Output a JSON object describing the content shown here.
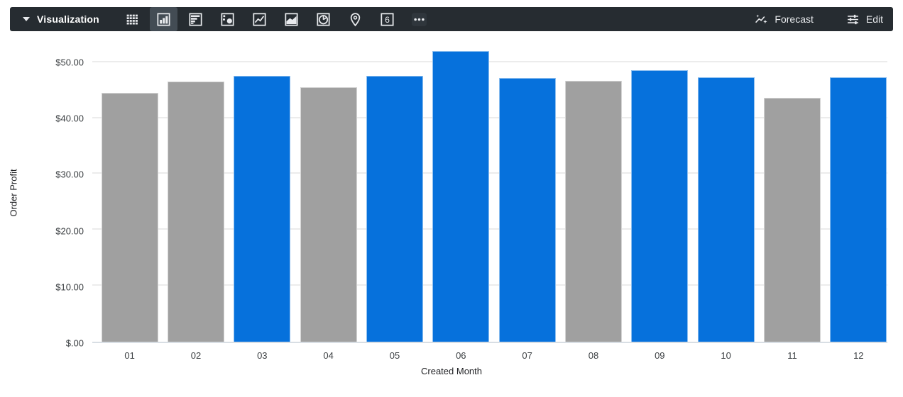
{
  "toolbar": {
    "background": "#262c31",
    "title": "Visualization",
    "chart_types": [
      {
        "name": "table",
        "icon": "table-icon",
        "selected": false
      },
      {
        "name": "column",
        "icon": "column-chart-icon",
        "selected": true
      },
      {
        "name": "bar",
        "icon": "bar-chart-icon",
        "selected": false
      },
      {
        "name": "scatter",
        "icon": "scatter-plot-icon",
        "selected": false
      },
      {
        "name": "line",
        "icon": "line-chart-icon",
        "selected": false
      },
      {
        "name": "area",
        "icon": "area-chart-icon",
        "selected": false
      },
      {
        "name": "pie",
        "icon": "pie-chart-icon",
        "selected": false
      },
      {
        "name": "map",
        "icon": "map-pin-icon",
        "selected": false
      },
      {
        "name": "single-value",
        "icon": "single-value-icon",
        "selected": false
      },
      {
        "name": "more",
        "icon": "ellipsis-icon",
        "selected": false
      }
    ],
    "single_value_glyph": "6",
    "forecast_label": "Forecast",
    "edit_label": "Edit"
  },
  "chart_data": {
    "type": "bar",
    "title": "",
    "xlabel": "Created Month",
    "ylabel": "Order Profit",
    "categories": [
      "01",
      "02",
      "03",
      "04",
      "05",
      "06",
      "07",
      "08",
      "09",
      "10",
      "11",
      "12"
    ],
    "values": [
      44.5,
      46.5,
      47.6,
      45.5,
      47.6,
      52.0,
      47.2,
      46.6,
      48.6,
      47.3,
      43.6,
      47.3
    ],
    "bar_colors": [
      "gray",
      "gray",
      "blue",
      "gray",
      "blue",
      "blue",
      "blue",
      "gray",
      "blue",
      "blue",
      "gray",
      "blue"
    ],
    "palette": {
      "blue": "#0671dc",
      "gray": "#a0a0a0"
    },
    "y_ticks": [
      {
        "value": 0,
        "label": "$.00"
      },
      {
        "value": 10,
        "label": "$10.00"
      },
      {
        "value": 20,
        "label": "$20.00"
      },
      {
        "value": 30,
        "label": "$30.00"
      },
      {
        "value": 40,
        "label": "$40.00"
      },
      {
        "value": 50,
        "label": "$50.00"
      }
    ],
    "ylim": [
      0,
      53.5
    ],
    "grid": true,
    "legend": "none",
    "value_format": "usd"
  }
}
